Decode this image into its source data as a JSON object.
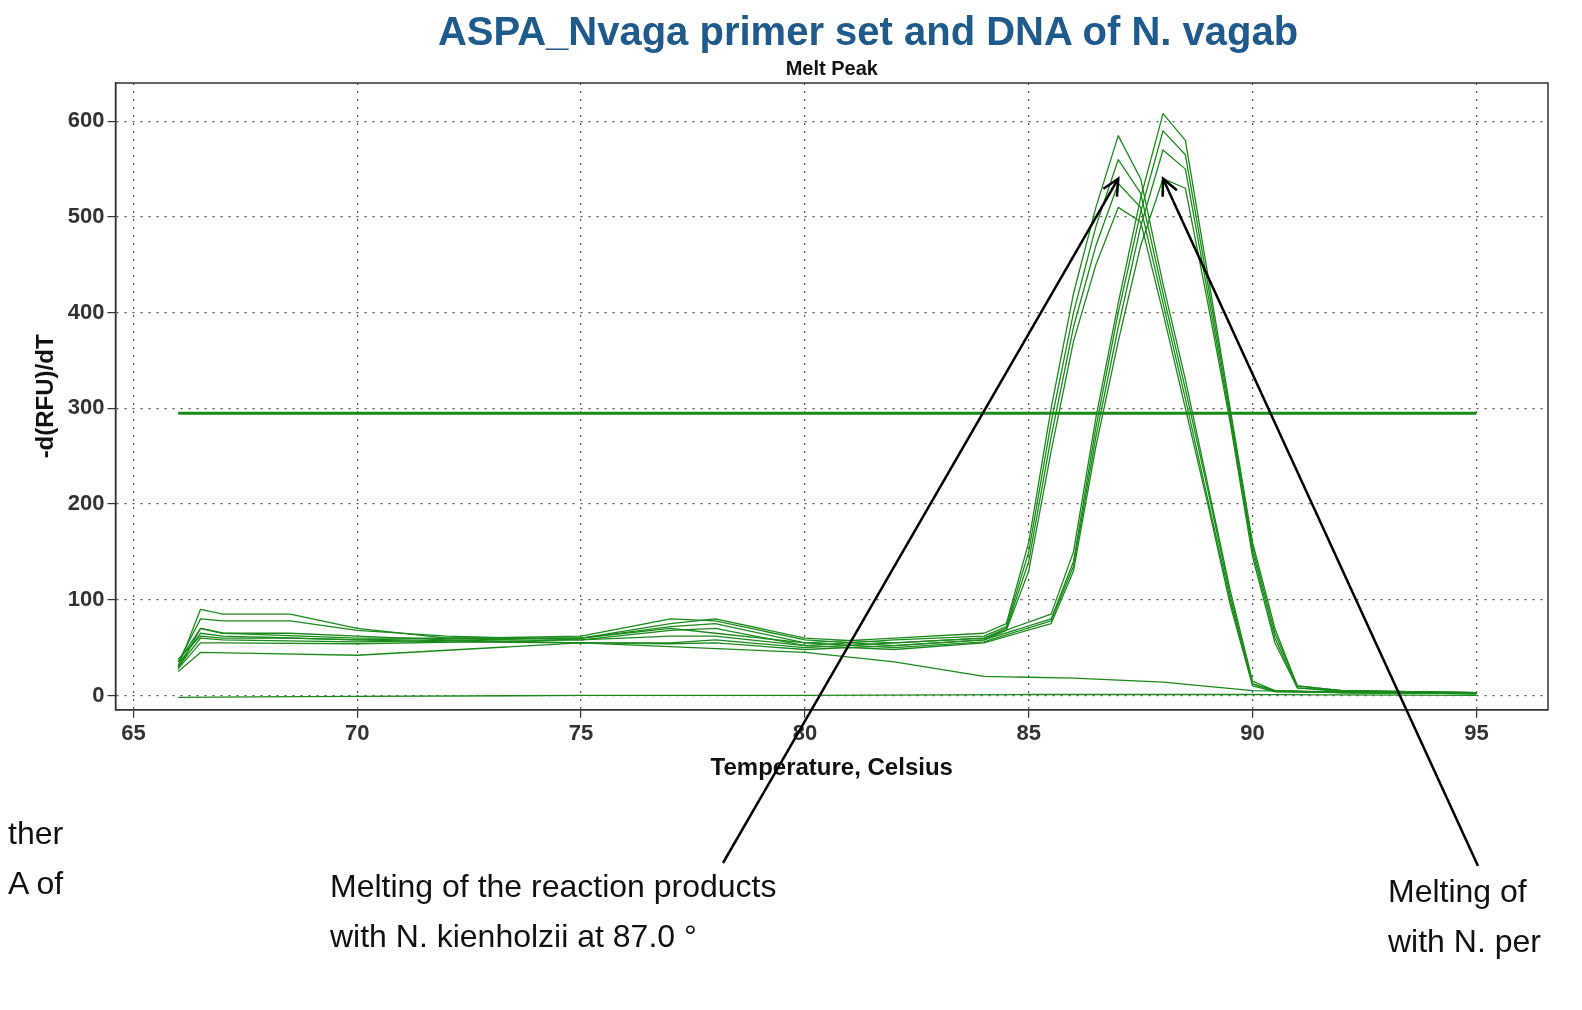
{
  "chart_data": {
    "type": "line",
    "title": "ASPA_Nvaga primer set and DNA of N. vagab",
    "subtitle": "Melt Peak",
    "xlabel": "Temperature, Celsius",
    "ylabel": "-d(RFU)/dT",
    "xlim": [
      64.6,
      96.6
    ],
    "xticks": [
      65,
      70,
      75,
      80,
      85,
      90,
      95
    ],
    "ylim": [
      -15,
      640
    ],
    "yticks": [
      0,
      100,
      200,
      300,
      400,
      500,
      600
    ],
    "grid": true,
    "legend": false,
    "marker": "none",
    "line_style": "solid",
    "ref_lines": [
      {
        "axis": "y",
        "value": 295,
        "color": "#1a8a1a"
      }
    ],
    "annotations": [
      {
        "text": "Melting of the reaction products\nwith N. kienholzii at 87.0 °",
        "x": 87,
        "y": 540
      },
      {
        "text": "Melting of\nwith N. per",
        "x": 88,
        "y": 540
      },
      "ther\nA of"
    ],
    "series": [
      {
        "color": "#1a8a1a",
        "x": [
          66,
          66.5,
          67,
          68.5,
          70,
          72,
          75,
          77,
          78,
          80,
          82,
          84,
          84.5,
          85,
          85.5,
          86,
          86.5,
          87,
          87.5,
          88,
          88.5,
          89,
          89.5,
          90,
          90.5,
          92,
          95
        ],
        "values": [
          30,
          90,
          85,
          85,
          70,
          60,
          60,
          70,
          65,
          55,
          60,
          65,
          75,
          160,
          300,
          420,
          510,
          585,
          540,
          430,
          330,
          220,
          110,
          15,
          5,
          3,
          2
        ]
      },
      {
        "color": "#1a8a1a",
        "x": [
          66,
          66.5,
          67,
          68.5,
          70,
          72,
          75,
          77,
          78,
          80,
          82,
          84,
          84.5,
          85,
          85.5,
          86,
          86.5,
          87,
          87.5,
          88,
          88.5,
          89,
          89.5,
          90,
          90.5,
          92,
          95
        ],
        "values": [
          35,
          80,
          78,
          78,
          68,
          62,
          58,
          62,
          62,
          52,
          58,
          62,
          72,
          150,
          285,
          400,
          490,
          560,
          525,
          420,
          320,
          215,
          105,
          12,
          5,
          3,
          2
        ]
      },
      {
        "color": "#1a8a1a",
        "x": [
          66,
          66.5,
          67,
          68.5,
          70,
          72,
          75,
          77,
          78,
          80,
          82,
          84,
          84.5,
          85,
          85.5,
          86,
          86.5,
          87,
          87.5,
          88,
          88.5,
          89,
          89.5,
          90,
          90.5,
          92,
          95
        ],
        "values": [
          28,
          70,
          65,
          65,
          62,
          58,
          55,
          55,
          58,
          50,
          55,
          60,
          70,
          140,
          270,
          385,
          470,
          535,
          510,
          410,
          310,
          205,
          100,
          12,
          4,
          3,
          2
        ]
      },
      {
        "color": "#1a8a1a",
        "x": [
          66,
          66.5,
          67,
          68.5,
          70,
          72,
          75,
          77,
          78,
          80,
          82,
          84,
          84.5,
          85,
          85.5,
          86,
          86.5,
          87,
          87.5,
          88,
          88.5,
          89,
          89.5,
          90,
          90.5,
          92,
          95
        ],
        "values": [
          38,
          62,
          60,
          60,
          58,
          56,
          55,
          54,
          55,
          48,
          52,
          58,
          68,
          130,
          255,
          370,
          450,
          510,
          495,
          400,
          300,
          200,
          95,
          10,
          4,
          3,
          2
        ]
      },
      {
        "color": "#1a8a1a",
        "x": [
          66,
          66.5,
          67,
          70,
          75,
          77,
          78,
          80,
          82,
          84,
          85.5,
          86,
          86.5,
          87,
          87.5,
          88,
          88.5,
          89,
          89.5,
          90,
          90.5,
          91,
          92,
          95
        ],
        "values": [
          35,
          70,
          65,
          60,
          60,
          75,
          80,
          60,
          55,
          60,
          85,
          150,
          290,
          410,
          520,
          608,
          580,
          440,
          300,
          160,
          70,
          10,
          5,
          3
        ]
      },
      {
        "color": "#1a8a1a",
        "x": [
          66,
          66.5,
          67,
          70,
          75,
          77,
          78,
          80,
          82,
          84,
          85.5,
          86,
          86.5,
          87,
          87.5,
          88,
          88.5,
          89,
          89.5,
          90,
          90.5,
          91,
          92,
          95
        ],
        "values": [
          32,
          65,
          62,
          58,
          62,
          80,
          78,
          58,
          52,
          58,
          80,
          140,
          280,
          400,
          505,
          590,
          565,
          430,
          295,
          155,
          65,
          10,
          5,
          3
        ]
      },
      {
        "color": "#1a8a1a",
        "x": [
          66,
          66.5,
          67,
          70,
          75,
          77,
          78,
          80,
          82,
          84,
          85.5,
          86,
          86.5,
          87,
          87.5,
          88,
          88.5,
          89,
          89.5,
          90,
          90.5,
          91,
          92,
          95
        ],
        "values": [
          30,
          60,
          58,
          56,
          60,
          72,
          75,
          55,
          50,
          56,
          78,
          135,
          270,
          385,
          490,
          570,
          550,
          420,
          290,
          150,
          60,
          8,
          5,
          3
        ]
      },
      {
        "color": "#1a8a1a",
        "x": [
          66,
          66.5,
          67,
          70,
          75,
          77,
          78,
          80,
          82,
          84,
          85.5,
          86,
          86.5,
          87,
          87.5,
          88,
          88.5,
          89,
          89.5,
          90,
          90.5,
          91,
          92,
          95
        ],
        "values": [
          28,
          55,
          55,
          54,
          58,
          68,
          70,
          52,
          48,
          55,
          75,
          130,
          260,
          370,
          470,
          540,
          530,
          410,
          285,
          145,
          55,
          8,
          4,
          3
        ]
      },
      {
        "color": "#1a8a1a",
        "x": [
          66,
          66.5,
          70,
          75,
          80,
          82,
          84,
          86,
          88,
          90,
          95
        ],
        "values": [
          25,
          45,
          42,
          55,
          45,
          35,
          20,
          18,
          14,
          5,
          2
        ]
      },
      {
        "color": "#1a8a1a",
        "x": [
          66,
          70,
          75,
          80,
          85,
          90,
          95
        ],
        "values": [
          -2,
          -1,
          0,
          0,
          1,
          1,
          0
        ]
      }
    ]
  }
}
